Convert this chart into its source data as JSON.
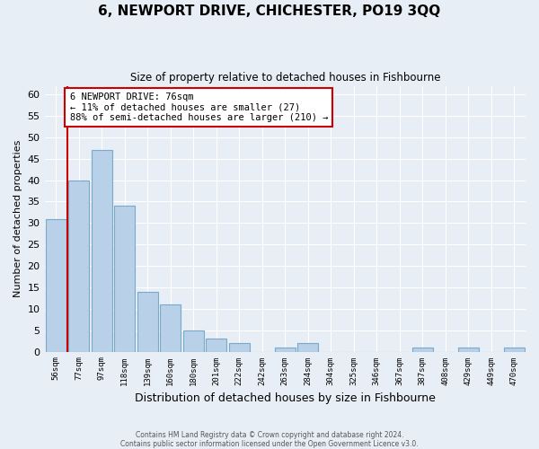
{
  "title": "6, NEWPORT DRIVE, CHICHESTER, PO19 3QQ",
  "subtitle": "Size of property relative to detached houses in Fishbourne",
  "xlabel": "Distribution of detached houses by size in Fishbourne",
  "ylabel": "Number of detached properties",
  "bar_labels": [
    "56sqm",
    "77sqm",
    "97sqm",
    "118sqm",
    "139sqm",
    "160sqm",
    "180sqm",
    "201sqm",
    "222sqm",
    "242sqm",
    "263sqm",
    "284sqm",
    "304sqm",
    "325sqm",
    "346sqm",
    "367sqm",
    "387sqm",
    "408sqm",
    "429sqm",
    "449sqm",
    "470sqm"
  ],
  "bar_values": [
    31,
    40,
    47,
    34,
    14,
    11,
    5,
    3,
    2,
    0,
    1,
    2,
    0,
    0,
    0,
    0,
    1,
    0,
    1,
    0,
    1
  ],
  "bar_color": "#b8d0e8",
  "bar_edge_color": "#7aaac8",
  "marker_color": "#cc0000",
  "annotation_text": "6 NEWPORT DRIVE: 76sqm\n← 11% of detached houses are smaller (27)\n88% of semi-detached houses are larger (210) →",
  "annotation_box_color": "#ffffff",
  "annotation_box_edge": "#cc0000",
  "ylim": [
    0,
    62
  ],
  "yticks": [
    0,
    5,
    10,
    15,
    20,
    25,
    30,
    35,
    40,
    45,
    50,
    55,
    60
  ],
  "footer": "Contains HM Land Registry data © Crown copyright and database right 2024.\nContains public sector information licensed under the Open Government Licence v3.0.",
  "bg_color": "#e8eef5",
  "plot_bg": "#e8eef5",
  "grid_color": "#ffffff"
}
